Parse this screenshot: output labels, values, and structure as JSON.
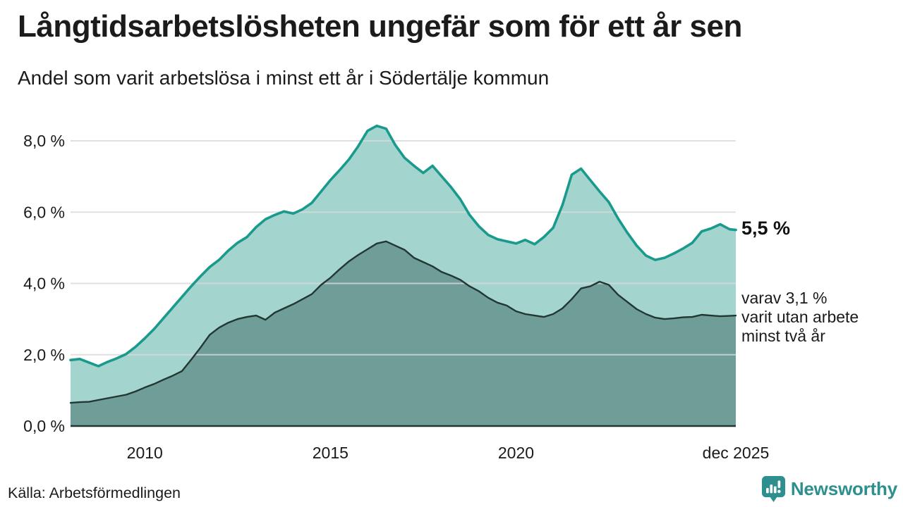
{
  "header": {
    "title": "Långtidsarbetslösheten ungefär som för ett år sen",
    "subtitle": "Andel som varit arbetslösa i minst ett år i Södertälje kommun"
  },
  "source": "Källa: Arbetsförmedlingen",
  "branding": {
    "name": "Newsworthy",
    "logo_icon": "bar-chart-speech-bubble-icon"
  },
  "colors": {
    "line_one_year": "#199a8c",
    "fill_one_year": "#a3d5ce",
    "line_two_year": "#233732",
    "fill_two_year": "#6f9e99",
    "grid": "#d8d8db",
    "axis": "#243430",
    "text": "#1a1a1a",
    "brand": "#2e8f8f"
  },
  "chart_data": {
    "type": "area",
    "title": "Långtidsarbetslösheten ungefär som för ett år sen",
    "subtitle": "Andel som varit arbetslösa i minst ett år i Södertälje kommun",
    "unit": "%",
    "grid": true,
    "x_range": [
      2008,
      2025.92
    ],
    "ylim": [
      0,
      8.6
    ],
    "y_axis": {
      "ticks": [
        {
          "value": 8,
          "label": "8,0 %"
        },
        {
          "value": 6,
          "label": "6,0 %"
        },
        {
          "value": 4,
          "label": "4,0 %"
        },
        {
          "value": 2,
          "label": "2,0 %"
        },
        {
          "value": 0,
          "label": "0,0 %"
        }
      ]
    },
    "x_axis": {
      "ticks": [
        {
          "x": 2010,
          "label": "2010"
        },
        {
          "x": 2015,
          "label": "2015"
        },
        {
          "x": 2020,
          "label": "2020"
        },
        {
          "x": 2025.92,
          "label": "dec 2025"
        }
      ]
    },
    "x": [
      2008,
      2008.25,
      2008.5,
      2008.75,
      2009,
      2009.25,
      2009.5,
      2009.75,
      2010,
      2010.25,
      2010.5,
      2010.75,
      2011,
      2011.25,
      2011.5,
      2011.75,
      2012,
      2012.25,
      2012.5,
      2012.75,
      2013,
      2013.25,
      2013.5,
      2013.75,
      2014,
      2014.25,
      2014.5,
      2014.75,
      2015,
      2015.25,
      2015.5,
      2015.75,
      2016,
      2016.25,
      2016.5,
      2016.75,
      2017,
      2017.25,
      2017.5,
      2017.75,
      2018,
      2018.25,
      2018.5,
      2018.75,
      2019,
      2019.25,
      2019.5,
      2019.75,
      2020,
      2020.25,
      2020.5,
      2020.75,
      2021,
      2021.25,
      2021.5,
      2021.75,
      2022,
      2022.25,
      2022.5,
      2022.75,
      2023,
      2023.25,
      2023.5,
      2023.75,
      2024,
      2024.25,
      2024.5,
      2024.75,
      2025,
      2025.25,
      2025.5,
      2025.75,
      2025.92
    ],
    "series": [
      {
        "id": "minst-ett-ar",
        "name": "Arbetslösa minst ett år",
        "color": "#199a8c",
        "fill": "#a3d5ce",
        "end_value": 5.5,
        "values": [
          1.85,
          1.88,
          1.78,
          1.68,
          1.8,
          1.9,
          2.02,
          2.22,
          2.46,
          2.72,
          3.02,
          3.32,
          3.62,
          3.92,
          4.2,
          4.46,
          4.66,
          4.92,
          5.14,
          5.3,
          5.58,
          5.8,
          5.92,
          6.02,
          5.96,
          6.08,
          6.26,
          6.58,
          6.9,
          7.18,
          7.48,
          7.85,
          8.28,
          8.42,
          8.34,
          7.88,
          7.52,
          7.3,
          7.1,
          7.3,
          7.0,
          6.7,
          6.36,
          5.92,
          5.6,
          5.36,
          5.24,
          5.18,
          5.12,
          5.22,
          5.1,
          5.3,
          5.56,
          6.2,
          7.05,
          7.22,
          6.9,
          6.58,
          6.28,
          5.82,
          5.42,
          5.06,
          4.78,
          4.66,
          4.72,
          4.84,
          4.98,
          5.14,
          5.46,
          5.54,
          5.66,
          5.52,
          5.5
        ]
      },
      {
        "id": "minst-tva-ar",
        "name": "Arbetslösa minst två år",
        "color": "#233732",
        "fill": "#6f9e99",
        "end_value": 3.1,
        "values": [
          0.65,
          0.67,
          0.68,
          0.73,
          0.78,
          0.83,
          0.88,
          0.97,
          1.08,
          1.18,
          1.3,
          1.41,
          1.54,
          1.86,
          2.2,
          2.56,
          2.76,
          2.9,
          3.0,
          3.06,
          3.1,
          2.98,
          3.18,
          3.3,
          3.42,
          3.56,
          3.7,
          3.96,
          4.16,
          4.4,
          4.62,
          4.8,
          4.96,
          5.12,
          5.18,
          5.06,
          4.94,
          4.72,
          4.6,
          4.48,
          4.32,
          4.22,
          4.1,
          3.92,
          3.78,
          3.6,
          3.46,
          3.38,
          3.22,
          3.14,
          3.1,
          3.06,
          3.14,
          3.3,
          3.56,
          3.86,
          3.92,
          4.05,
          3.96,
          3.68,
          3.48,
          3.28,
          3.14,
          3.04,
          3.0,
          3.02,
          3.05,
          3.06,
          3.12,
          3.1,
          3.08,
          3.09,
          3.1
        ]
      }
    ],
    "annotations": {
      "end_label": "5,5 %",
      "secondary_lines": [
        "varav 3,1 %",
        "varit utan arbete",
        "minst två år"
      ]
    }
  }
}
